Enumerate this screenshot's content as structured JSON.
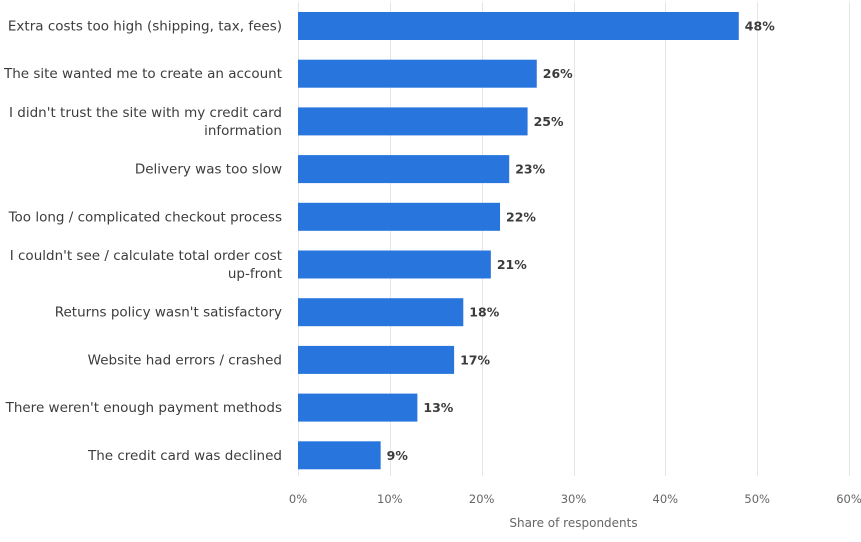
{
  "chart_data": {
    "type": "bar",
    "orientation": "horizontal",
    "categories": [
      [
        "Extra costs too high (shipping, tax, fees)"
      ],
      [
        "The site wanted me to create an account"
      ],
      [
        "I didn't trust the site with my credit card",
        "information"
      ],
      [
        "Delivery was too slow"
      ],
      [
        "Too long / complicated checkout process"
      ],
      [
        "I couldn't see / calculate total order cost",
        "up-front"
      ],
      [
        "Returns policy wasn't satisfactory"
      ],
      [
        "Website had errors / crashed"
      ],
      [
        "There weren't enough payment methods"
      ],
      [
        "The credit card was declined"
      ]
    ],
    "values": [
      48,
      26,
      25,
      23,
      22,
      21,
      18,
      17,
      13,
      9
    ],
    "value_labels": [
      "48%",
      "26%",
      "25%",
      "23%",
      "22%",
      "21%",
      "18%",
      "17%",
      "13%",
      "9%"
    ],
    "xlabel": "Share of respondents",
    "xlim": [
      0,
      60
    ],
    "xticks": [
      0,
      10,
      20,
      30,
      40,
      50,
      60
    ],
    "xtick_labels": [
      "0%",
      "10%",
      "20%",
      "30%",
      "40%",
      "50%",
      "60%"
    ],
    "grid": true,
    "legend": "none",
    "colors": {
      "bar": "#2876dd",
      "grid": "#e6e6e6",
      "text": "#3c3c3c",
      "axis_text": "#666666"
    }
  }
}
